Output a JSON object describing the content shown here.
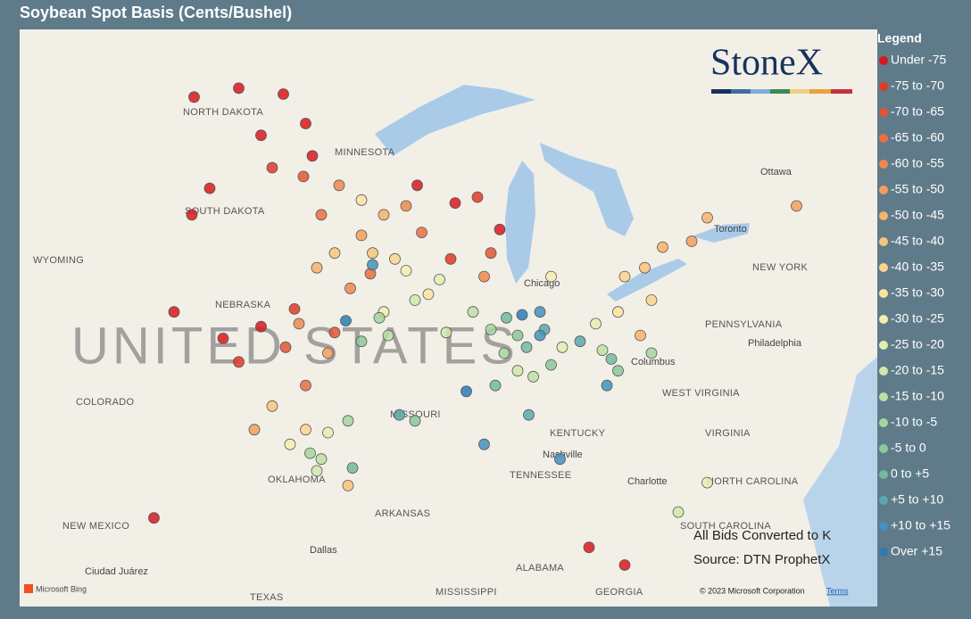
{
  "title": "Soybean Spot Basis (Cents/Bushel)",
  "logo": "StoneX",
  "legend": {
    "title": "Legend",
    "items": [
      {
        "label": "Under -75",
        "color": "#d7191c",
        "points": [
          [
            -102.5,
            48.3
          ],
          [
            -100.5,
            48.6
          ],
          [
            -98.5,
            48.4
          ],
          [
            -97.5,
            47.4
          ],
          [
            -99.5,
            47.0
          ],
          [
            -97.2,
            46.3
          ],
          [
            -101.8,
            45.2
          ],
          [
            -102.6,
            44.3
          ],
          [
            -103.4,
            41.0
          ],
          [
            -101.2,
            40.1
          ],
          [
            -99.5,
            40.5
          ],
          [
            -92.5,
            45.3
          ],
          [
            -90.8,
            44.7
          ],
          [
            -88.8,
            43.8
          ],
          [
            -84.8,
            33.0
          ],
          [
            -83.2,
            32.4
          ],
          [
            -104.3,
            34.0
          ]
        ]
      },
      {
        "label": "-75 to -70",
        "color": "#de3a26",
        "points": [
          [
            -99.0,
            45.9
          ],
          [
            -98.0,
            41.1
          ],
          [
            -100.5,
            39.3
          ],
          [
            -91.0,
            42.8
          ],
          [
            -89.8,
            44.9
          ]
        ]
      },
      {
        "label": "-70 to -65",
        "color": "#e45532",
        "points": [
          [
            -97.6,
            45.6
          ],
          [
            -96.2,
            40.3
          ],
          [
            -89.2,
            43.0
          ],
          [
            -98.4,
            39.8
          ]
        ]
      },
      {
        "label": "-65 to -60",
        "color": "#ea6e40",
        "points": [
          [
            -96.8,
            44.3
          ],
          [
            -94.6,
            42.3
          ],
          [
            -92.3,
            43.7
          ],
          [
            -97.5,
            38.5
          ]
        ]
      },
      {
        "label": "-60 to -55",
        "color": "#f0874f",
        "points": [
          [
            -96.0,
            45.3
          ],
          [
            -95.5,
            41.8
          ],
          [
            -97.8,
            40.6
          ],
          [
            -93.0,
            44.6
          ],
          [
            -89.5,
            42.2
          ]
        ]
      },
      {
        "label": "-55 to -50",
        "color": "#f49e5e",
        "points": [
          [
            -95.0,
            43.6
          ],
          [
            -96.5,
            39.6
          ],
          [
            -99.8,
            37.0
          ],
          [
            -75.5,
            44.6
          ],
          [
            -80.2,
            43.4
          ]
        ]
      },
      {
        "label": "-50 to -45",
        "color": "#f7b26c",
        "points": [
          [
            -94.0,
            44.3
          ],
          [
            -97.0,
            42.5
          ],
          [
            -81.5,
            43.2
          ],
          [
            -79.5,
            44.2
          ],
          [
            -82.5,
            40.2
          ]
        ]
      },
      {
        "label": "-45 to -40",
        "color": "#f9c47c",
        "points": [
          [
            -94.5,
            43.0
          ],
          [
            -96.2,
            43.0
          ],
          [
            -99.0,
            37.8
          ],
          [
            -82.3,
            42.5
          ],
          [
            -95.6,
            35.1
          ]
        ]
      },
      {
        "label": "-40 to -35",
        "color": "#fbd58e",
        "points": [
          [
            -93.5,
            42.8
          ],
          [
            -82.0,
            41.4
          ],
          [
            -97.5,
            37.0
          ],
          [
            -83.2,
            42.2
          ]
        ]
      },
      {
        "label": "-35 to -30",
        "color": "#fce4a0",
        "points": [
          [
            -95.0,
            44.8
          ],
          [
            -92.0,
            41.6
          ],
          [
            -83.5,
            41.0
          ]
        ]
      },
      {
        "label": "-30 to -25",
        "color": "#f4edb0",
        "points": [
          [
            -93.0,
            42.4
          ],
          [
            -94.0,
            41.0
          ],
          [
            -98.2,
            36.5
          ],
          [
            -86.5,
            42.2
          ]
        ]
      },
      {
        "label": "-25 to -20",
        "color": "#e3eeb2",
        "points": [
          [
            -91.5,
            42.1
          ],
          [
            -96.5,
            36.9
          ],
          [
            -86.0,
            39.8
          ],
          [
            -84.5,
            40.6
          ],
          [
            -79.5,
            35.2
          ]
        ]
      },
      {
        "label": "-20 to -15",
        "color": "#d0e8ab",
        "points": [
          [
            -92.6,
            41.4
          ],
          [
            -91.2,
            40.3
          ],
          [
            -88.0,
            39.0
          ],
          [
            -97.0,
            35.6
          ],
          [
            -80.8,
            34.2
          ]
        ]
      },
      {
        "label": "-15 to -10",
        "color": "#bde0a4",
        "points": [
          [
            -93.8,
            40.2
          ],
          [
            -90.0,
            41.0
          ],
          [
            -87.3,
            38.8
          ],
          [
            -84.2,
            39.7
          ],
          [
            -96.8,
            36.0
          ]
        ]
      },
      {
        "label": "-10 to -5",
        "color": "#a6d59d",
        "points": [
          [
            -94.2,
            40.8
          ],
          [
            -89.2,
            40.4
          ],
          [
            -88.6,
            39.6
          ],
          [
            -97.3,
            36.2
          ],
          [
            -95.6,
            37.3
          ],
          [
            -82.0,
            39.6
          ]
        ]
      },
      {
        "label": "-5 to 0",
        "color": "#8cc89a",
        "points": [
          [
            -95.0,
            40.0
          ],
          [
            -88.0,
            40.2
          ],
          [
            -86.5,
            39.2
          ],
          [
            -83.5,
            39.0
          ],
          [
            -92.6,
            37.3
          ]
        ]
      },
      {
        "label": "0 to +5",
        "color": "#73b9a0",
        "points": [
          [
            -88.5,
            40.8
          ],
          [
            -87.6,
            39.8
          ],
          [
            -89.0,
            38.5
          ],
          [
            -95.4,
            35.7
          ],
          [
            -83.8,
            39.4
          ]
        ]
      },
      {
        "label": "+5 to +10",
        "color": "#5aa7ae",
        "points": [
          [
            -86.8,
            40.4
          ],
          [
            -93.3,
            37.5
          ],
          [
            -85.2,
            40.0
          ],
          [
            -87.5,
            37.5
          ]
        ]
      },
      {
        "label": "+10 to +15",
        "color": "#4392bd",
        "points": [
          [
            -87.0,
            41.0
          ],
          [
            -94.5,
            42.6
          ],
          [
            -86.1,
            36.0
          ],
          [
            -89.5,
            36.5
          ],
          [
            -87.0,
            40.2
          ],
          [
            -84.0,
            38.5
          ]
        ]
      },
      {
        "label": "Over +15",
        "color": "#2c7bb6",
        "points": [
          [
            -87.8,
            40.9
          ],
          [
            -90.3,
            38.3
          ],
          [
            -95.7,
            40.7
          ]
        ]
      }
    ]
  },
  "notes": [
    "All Bids Converted to K",
    "Source: DTN ProphetX"
  ],
  "places": [
    "NORTH DAKOTA",
    "SOUTH DAKOTA",
    "MINNESOTA",
    "WYOMING",
    "NEBRASKA",
    "COLORADO",
    "MISSOURI",
    "KENTUCKY",
    "TENNESSEE",
    "ARKANSAS",
    "OKLAHOMA",
    "NEW MEXICO",
    "TEXAS",
    "MISSISSIPPI",
    "ALABAMA",
    "GEORGIA",
    "VIRGINIA",
    "WEST VIRGINIA",
    "NORTH CAROLINA",
    "SOUTH CAROLINA",
    "PENNSYLVANIA",
    "NEW YORK",
    "Chicago",
    "Columbus",
    "Nashville",
    "Dallas",
    "Charlotte",
    "Philadelphia",
    "Ottawa",
    "Toronto",
    "Ciudad Juárez",
    "UNITED STATES"
  ],
  "footer": {
    "provider": "Microsoft Bing",
    "copyright": "© 2023 Microsoft Corporation",
    "terms": "Terms"
  }
}
